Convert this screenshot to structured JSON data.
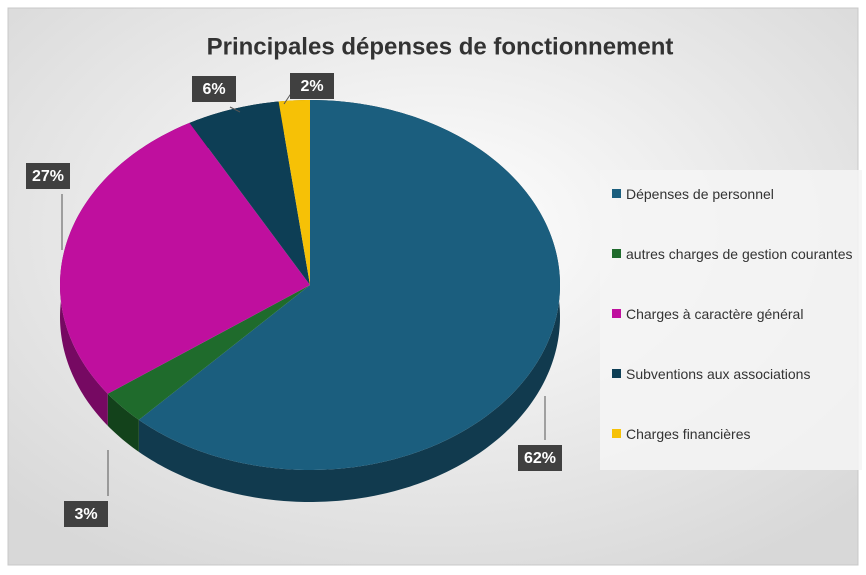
{
  "chart_data": {
    "type": "pie3d",
    "title": "Principales dépenses de fonctionnement",
    "labels": [
      "Dépenses de personnel",
      "autres charges de gestion courantes",
      "Charges à caractère général",
      "Subventions aux associations",
      "Charges financières"
    ],
    "values": [
      62,
      3,
      27,
      6,
      2
    ],
    "value_labels": [
      "62%",
      "3%",
      "27%",
      "6%",
      "2%"
    ],
    "colors": [
      "#1b5e7e",
      "#1f6b2c",
      "#bf0f9e",
      "#0d3e55",
      "#f6c106"
    ],
    "legend": "right"
  }
}
